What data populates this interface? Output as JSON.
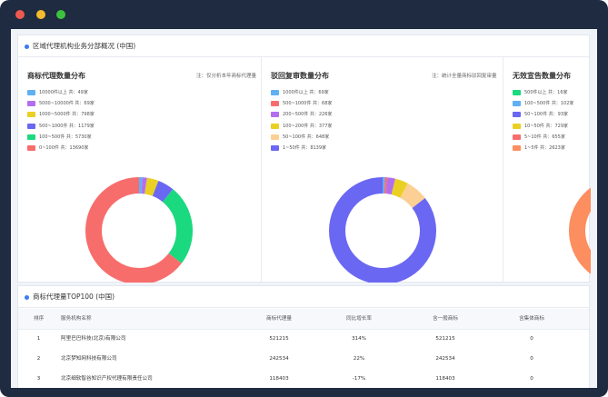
{
  "window": {
    "buttons": [
      {
        "name": "close",
        "color": "#ee5a52"
      },
      {
        "name": "minimize",
        "color": "#f5bc2f"
      },
      {
        "name": "maximize",
        "color": "#3cc23f"
      }
    ]
  },
  "section1": {
    "title": "区域代理机构业务分部概况 (中国)"
  },
  "panels": [
    {
      "title": "商标代理数量分布",
      "note": "注：仅分析本年商标代理量",
      "legend": [
        {
          "label": "10000件以上 共：49家",
          "color": "#5fb0f5"
        },
        {
          "label": "5000~10000件 共：69家",
          "color": "#b36ef0"
        },
        {
          "label": "1000~5000件 共：798家",
          "color": "#ead022"
        },
        {
          "label": "500~1000件 共：1179家",
          "color": "#6a67f3"
        },
        {
          "label": "100~500件 共：5730家",
          "color": "#1ad97e"
        },
        {
          "label": "0~100件 共：13690家",
          "color": "#f76d6c"
        }
      ]
    },
    {
      "title": "驳回复审数量分布",
      "note": "注：统计全量商标驳回复审量",
      "legend": [
        {
          "label": "1000件以上 共：69家",
          "color": "#5fb0f5"
        },
        {
          "label": "500~1000件 共：68家",
          "color": "#f76d6c"
        },
        {
          "label": "200~500件 共：226家",
          "color": "#b36ef0"
        },
        {
          "label": "100~200件 共：377家",
          "color": "#ead022"
        },
        {
          "label": "50~100件 共：648家",
          "color": "#fccf94"
        },
        {
          "label": "1~50件 共：8139家",
          "color": "#6a67f3"
        }
      ]
    },
    {
      "title": "无效宣告数量分布",
      "note": "",
      "legend": [
        {
          "label": "500件以上 共：16家",
          "color": "#1ad97e"
        },
        {
          "label": "100~500件 共：102家",
          "color": "#5fb0f5"
        },
        {
          "label": "50~100件 共：93家",
          "color": "#6a67f3"
        },
        {
          "label": "10~50件 共：729家",
          "color": "#ead022"
        },
        {
          "label": "5~10件 共：655家",
          "color": "#f76d6c"
        },
        {
          "label": "1~5件 共：2623家",
          "color": "#fd8e5f"
        }
      ]
    }
  ],
  "section2": {
    "title": "商标代理量TOP100 (中国)",
    "columns": [
      "排序",
      "服务机构名称",
      "商标代理量",
      "同比增长率",
      "含一般商标",
      "含集体商标"
    ],
    "rows": [
      [
        "1",
        "阿里巴巴科技(北京)有限公司",
        "521215",
        "314%",
        "521215",
        "0"
      ],
      [
        "2",
        "北京梦知网科技有限公司",
        "242534",
        "22%",
        "242534",
        "0"
      ],
      [
        "3",
        "北京细软智谷知识产权代理有限责任公司",
        "118403",
        "-17%",
        "118403",
        "0"
      ]
    ]
  }
}
